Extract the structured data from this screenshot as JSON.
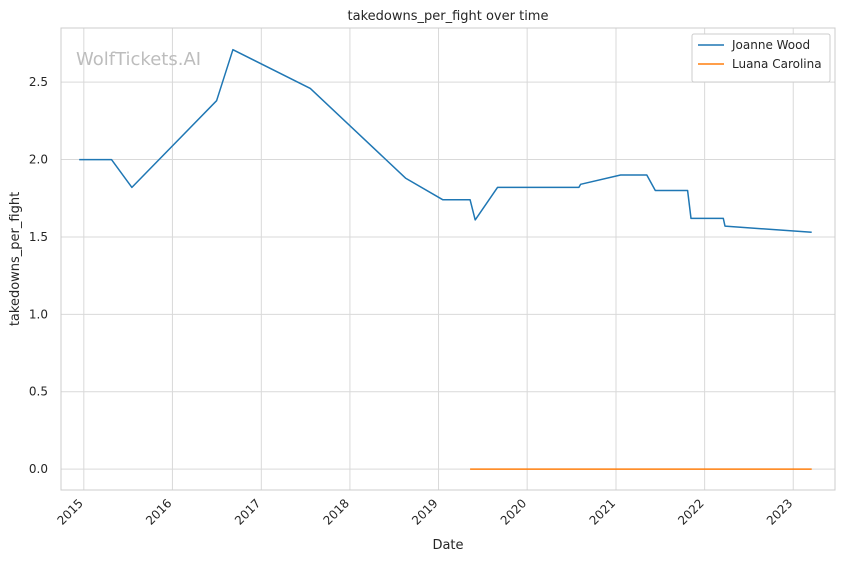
{
  "chart_data": {
    "type": "line",
    "title": "takedowns_per_fight over time",
    "xlabel": "Date",
    "ylabel": "takedowns_per_fight",
    "watermark": "WolfTickets.AI",
    "x_ticks": [
      "2015",
      "2016",
      "2017",
      "2018",
      "2019",
      "2020",
      "2021",
      "2022",
      "2023"
    ],
    "y_ticks": [
      "0.0",
      "0.5",
      "1.0",
      "1.5",
      "2.0",
      "2.5"
    ],
    "xlim": [
      "2014-09-29",
      "2023-06-22"
    ],
    "ylim": [
      -0.135,
      2.85
    ],
    "grid": true,
    "legend_position": "top-right",
    "series": [
      {
        "name": "Joanne Wood",
        "color": "#1f77b4",
        "points": [
          [
            "2014-12-13",
            2.0
          ],
          [
            "2015-04-25",
            2.0
          ],
          [
            "2015-07-18",
            1.82
          ],
          [
            "2016-07-01",
            2.38
          ],
          [
            "2016-09-06",
            2.71
          ],
          [
            "2017-07-22",
            2.46
          ],
          [
            "2018-08-18",
            1.88
          ],
          [
            "2019-01-19",
            1.74
          ],
          [
            "2019-05-11",
            1.74
          ],
          [
            "2019-06-01",
            1.61
          ],
          [
            "2019-09-01",
            1.82
          ],
          [
            "2020-08-01",
            1.82
          ],
          [
            "2020-08-08",
            1.84
          ],
          [
            "2021-01-20",
            1.9
          ],
          [
            "2021-05-08",
            1.9
          ],
          [
            "2021-06-12",
            1.8
          ],
          [
            "2021-10-23",
            1.8
          ],
          [
            "2021-11-06",
            1.62
          ],
          [
            "2022-03-19",
            1.62
          ],
          [
            "2022-03-26",
            1.57
          ],
          [
            "2023-03-18",
            1.53
          ]
        ]
      },
      {
        "name": "Luana Carolina",
        "color": "#ff7f0e",
        "points": [
          [
            "2019-05-11",
            0.0
          ],
          [
            "2023-03-18",
            0.0
          ]
        ]
      }
    ]
  }
}
